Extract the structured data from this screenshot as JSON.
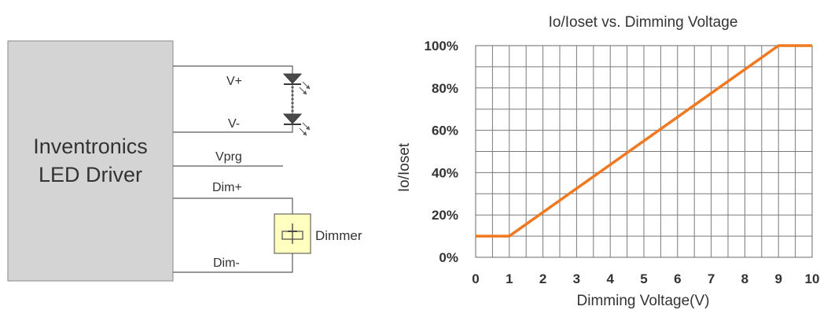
{
  "wiring": {
    "driver_label_line1": "Inventronics",
    "driver_label_line2": "LED Driver",
    "wire_labels": [
      "V+",
      "V-",
      "Vprg",
      "Dim+",
      "Dim-"
    ],
    "dimmer_label": "Dimmer",
    "driver_fill": "#d4d4d4",
    "dimmer_fill": "#ffffc0",
    "led_color": "#4a4a4a"
  },
  "chart_data": {
    "type": "line",
    "title": "Io/Ioset vs. Dimming Voltage",
    "xlabel": "Dimming Voltage(V)",
    "ylabel": "Io/Ioset",
    "x_ticks": [
      "0",
      "1",
      "2",
      "3",
      "4",
      "5",
      "6",
      "7",
      "8",
      "9",
      "10"
    ],
    "y_ticks": [
      "0%",
      "20%",
      "40%",
      "60%",
      "80%",
      "100%"
    ],
    "xlim": [
      0,
      10
    ],
    "ylim": [
      0,
      100
    ],
    "grid": true,
    "series": [
      {
        "color": "#f07820",
        "x": [
          0,
          1,
          9,
          10
        ],
        "y": [
          10,
          10,
          100,
          100
        ]
      }
    ]
  }
}
